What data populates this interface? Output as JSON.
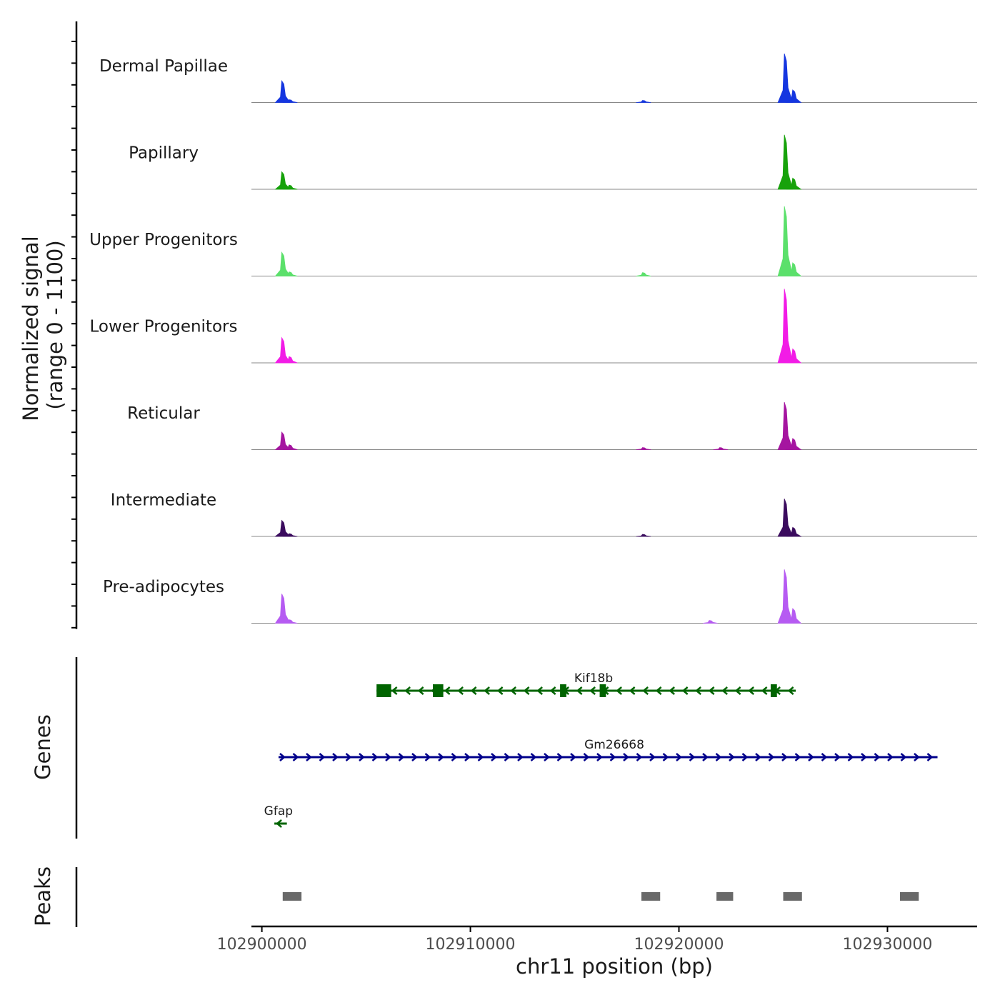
{
  "chart_data": {
    "type": "area",
    "title": "",
    "ylabel_line1": "Normalized signal",
    "ylabel_line2": "(range 0 - 1100)",
    "ylim": [
      0,
      1100
    ],
    "xlabel": "chr11 position (bp)",
    "xlim": [
      102899500,
      102934300
    ],
    "xticks": [
      102900000,
      102910000,
      102920000,
      102930000
    ],
    "xtick_labels": [
      "102900000",
      "102910000",
      "102920000",
      "102930000"
    ],
    "tracks": [
      {
        "name": "Dermal Papillae",
        "color": "#1536E0",
        "peaks": [
          {
            "x": 102901000,
            "h": 310
          },
          {
            "x": 102901350,
            "h": 40
          },
          {
            "x": 102918300,
            "h": 30
          },
          {
            "x": 102925100,
            "h": 700
          },
          {
            "x": 102925500,
            "h": 180
          }
        ]
      },
      {
        "name": "Papillary",
        "color": "#17A20B",
        "peaks": [
          {
            "x": 102901000,
            "h": 250
          },
          {
            "x": 102901350,
            "h": 60
          },
          {
            "x": 102925100,
            "h": 780
          },
          {
            "x": 102925500,
            "h": 160
          }
        ]
      },
      {
        "name": "Upper Progenitors",
        "color": "#5BE06B",
        "peaks": [
          {
            "x": 102901000,
            "h": 340
          },
          {
            "x": 102901350,
            "h": 60
          },
          {
            "x": 102918300,
            "h": 50
          },
          {
            "x": 102925100,
            "h": 1000
          },
          {
            "x": 102925500,
            "h": 190
          }
        ]
      },
      {
        "name": "Lower Progenitors",
        "color": "#F21CE6",
        "peaks": [
          {
            "x": 102901000,
            "h": 360
          },
          {
            "x": 102901350,
            "h": 90
          },
          {
            "x": 102925100,
            "h": 1060
          },
          {
            "x": 102925500,
            "h": 200
          }
        ]
      },
      {
        "name": "Reticular",
        "color": "#A515A0",
        "peaks": [
          {
            "x": 102901000,
            "h": 250
          },
          {
            "x": 102901350,
            "h": 70
          },
          {
            "x": 102918300,
            "h": 30
          },
          {
            "x": 102922000,
            "h": 30
          },
          {
            "x": 102925100,
            "h": 680
          },
          {
            "x": 102925500,
            "h": 160
          }
        ]
      },
      {
        "name": "Intermediate",
        "color": "#3B0C5E",
        "peaks": [
          {
            "x": 102901000,
            "h": 230
          },
          {
            "x": 102901350,
            "h": 40
          },
          {
            "x": 102918300,
            "h": 30
          },
          {
            "x": 102925100,
            "h": 540
          },
          {
            "x": 102925500,
            "h": 130
          }
        ]
      },
      {
        "name": "Pre-adipocytes",
        "color": "#B65BF2",
        "peaks": [
          {
            "x": 102901000,
            "h": 420
          },
          {
            "x": 102901350,
            "h": 50
          },
          {
            "x": 102921500,
            "h": 40
          },
          {
            "x": 102925100,
            "h": 770
          },
          {
            "x": 102925500,
            "h": 210
          }
        ]
      }
    ],
    "genes_label": "Genes",
    "genes": [
      {
        "name": "Kif18b",
        "strand": "-",
        "color": "#006400",
        "start": 102905500,
        "end": 102925600,
        "exons": [
          [
            102905500,
            102906200
          ],
          [
            102908200,
            102908700
          ],
          [
            102914300,
            102914600
          ],
          [
            102916200,
            102916500
          ],
          [
            102924400,
            102924700
          ]
        ]
      },
      {
        "name": "Gm26668",
        "strand": "+",
        "color": "#00008B",
        "start": 102900800,
        "end": 102932400,
        "exons": []
      },
      {
        "name": "Gfap",
        "strand": "-",
        "color": "#006400",
        "start": 102900600,
        "end": 102901200,
        "exons": []
      }
    ],
    "peaks_label": "Peaks",
    "peak_regions": [
      [
        102901000,
        102901900
      ],
      [
        102918200,
        102919100
      ],
      [
        102921800,
        102922600
      ],
      [
        102925000,
        102925900
      ],
      [
        102930600,
        102931500
      ]
    ],
    "peak_color": "#696969"
  }
}
